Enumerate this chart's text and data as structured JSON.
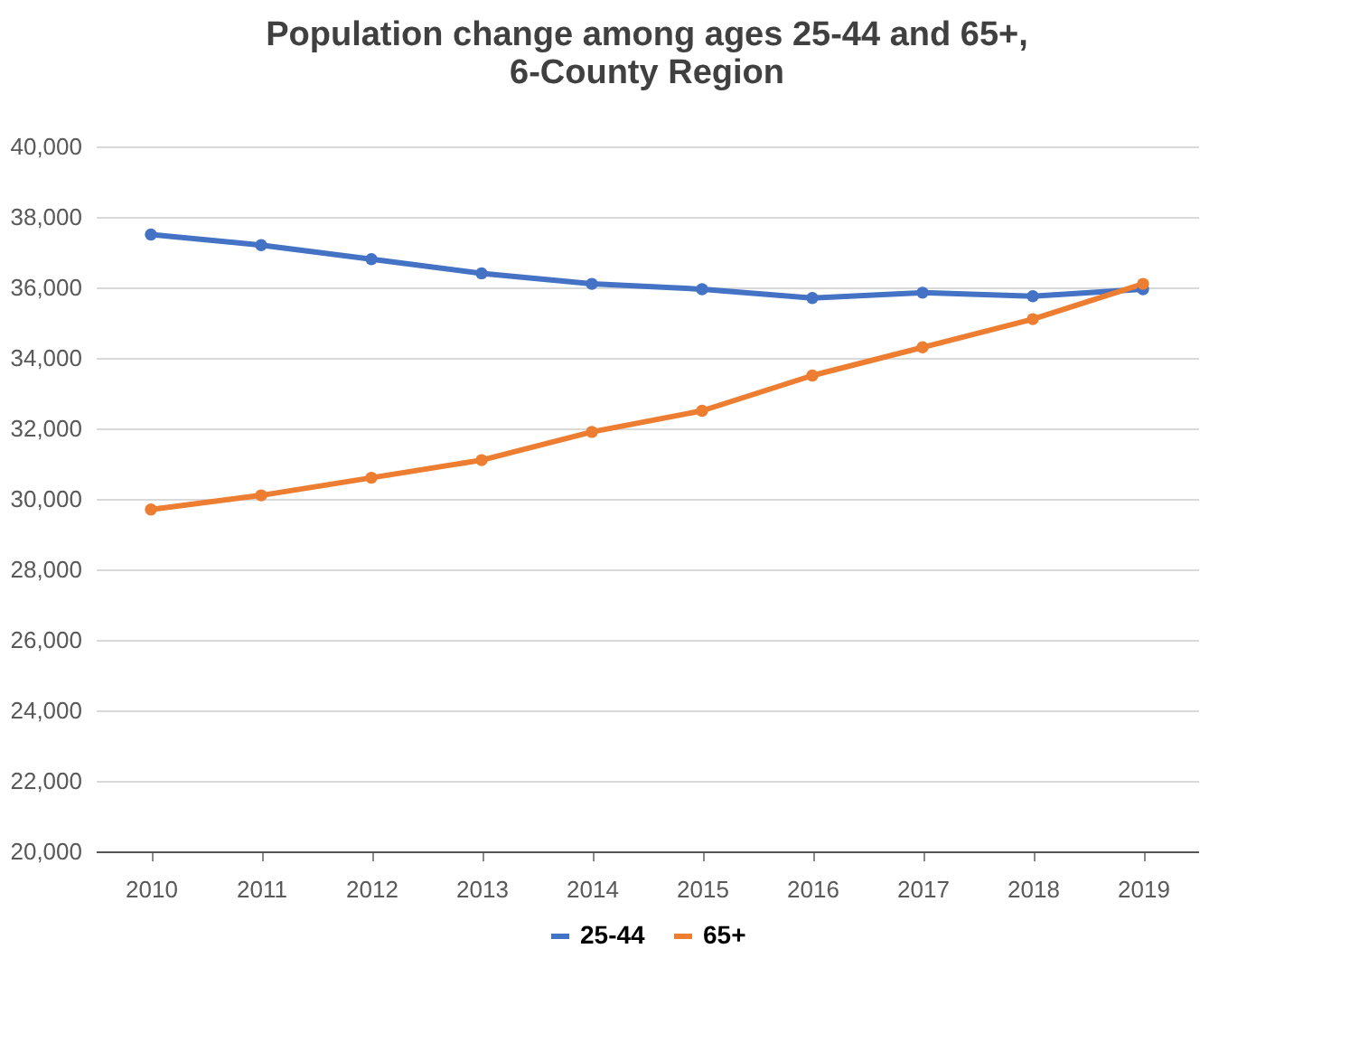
{
  "chart_data": {
    "type": "line",
    "title": "Population change among ages 25-44 and 65+,\n6-County Region",
    "categories": [
      "2010",
      "2011",
      "2012",
      "2013",
      "2014",
      "2015",
      "2016",
      "2017",
      "2018",
      "2019"
    ],
    "series": [
      {
        "name": "25-44",
        "color": "#4472c4",
        "values": [
          37500,
          37200,
          36800,
          36400,
          36100,
          35950,
          35700,
          35850,
          35750,
          35950
        ]
      },
      {
        "name": "65+",
        "color": "#ed7d31",
        "values": [
          29700,
          30100,
          30600,
          31100,
          31900,
          32500,
          33500,
          34300,
          35100,
          36100
        ]
      }
    ],
    "ylim": [
      20000,
      40000
    ],
    "yticks": [
      {
        "value": 20000,
        "label": "20,000"
      },
      {
        "value": 22000,
        "label": "22,000"
      },
      {
        "value": 24000,
        "label": "24,000"
      },
      {
        "value": 26000,
        "label": "26,000"
      },
      {
        "value": 28000,
        "label": "28,000"
      },
      {
        "value": 30000,
        "label": "30,000"
      },
      {
        "value": 32000,
        "label": "32,000"
      },
      {
        "value": 34000,
        "label": "34,000"
      },
      {
        "value": 36000,
        "label": "36,000"
      },
      {
        "value": 38000,
        "label": "38,000"
      },
      {
        "value": 40000,
        "label": "40,000"
      }
    ],
    "grid": "y",
    "legend": "bottom",
    "marker": "circle",
    "line_style": "solid"
  }
}
